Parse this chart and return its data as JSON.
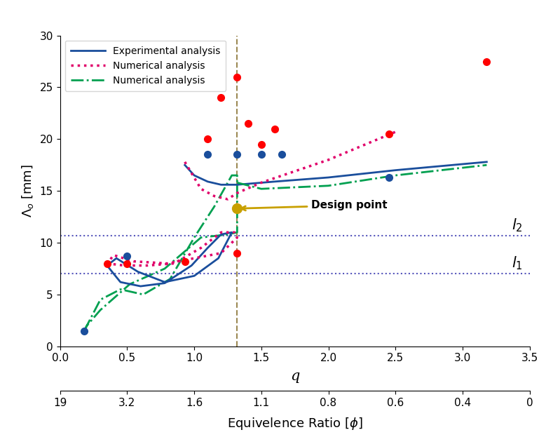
{
  "xlim": [
    0.0,
    3.5
  ],
  "ylim": [
    0.0,
    30.0
  ],
  "xticks": [
    0.0,
    0.5,
    1.0,
    1.5,
    2.0,
    2.5,
    3.0,
    3.5
  ],
  "yticks": [
    0,
    5,
    10,
    15,
    20,
    25,
    30
  ],
  "phi_labels": [
    "19",
    "3.2",
    "1.6",
    "1.1",
    "0.8",
    "0.6",
    "0.4",
    "0"
  ],
  "l1_y": 7.0,
  "l2_y": 10.7,
  "design_point_x": 1.32,
  "design_point_y": 13.3,
  "vline_x": 1.32,
  "blue_line_x": [
    0.93,
    1.0,
    1.1,
    1.2,
    1.32,
    1.6,
    2.0,
    2.5,
    3.18
  ],
  "blue_line_y": [
    17.5,
    16.5,
    15.9,
    15.6,
    15.6,
    15.9,
    16.3,
    17.0,
    17.8
  ],
  "blue_loop_x": [
    0.35,
    0.45,
    0.6,
    0.78,
    0.98,
    1.1,
    1.2,
    1.28,
    1.18,
    1.0,
    0.78,
    0.58,
    0.42,
    0.35
  ],
  "blue_loop_y": [
    7.8,
    6.2,
    5.8,
    6.1,
    7.8,
    9.5,
    10.8,
    11.0,
    8.5,
    6.8,
    6.2,
    7.2,
    8.5,
    7.8
  ],
  "pink_line_x": [
    0.93,
    1.05,
    1.15,
    1.25,
    1.32,
    1.5,
    2.0,
    2.5
  ],
  "pink_line_y": [
    17.8,
    15.2,
    14.5,
    14.2,
    14.8,
    15.8,
    18.0,
    20.7
  ],
  "pink_loop_x": [
    0.35,
    0.48,
    0.65,
    0.85,
    1.05,
    1.2,
    1.3,
    1.32,
    1.2,
    1.0,
    0.8,
    0.55,
    0.4,
    0.35
  ],
  "pink_loop_y": [
    8.0,
    7.8,
    7.8,
    8.0,
    9.5,
    11.0,
    11.0,
    10.5,
    9.0,
    8.5,
    8.0,
    8.2,
    8.8,
    8.0
  ],
  "green_outer_x": [
    0.18,
    0.22,
    0.3,
    0.45,
    0.62,
    0.82,
    1.0,
    1.15,
    1.28,
    1.32,
    1.32,
    1.25,
    1.05,
    0.78,
    0.52,
    0.3,
    0.2,
    0.18
  ],
  "green_outer_y": [
    1.5,
    2.5,
    4.5,
    5.5,
    5.0,
    6.5,
    10.5,
    13.5,
    16.5,
    16.5,
    11.0,
    10.8,
    10.5,
    7.5,
    6.0,
    3.5,
    2.0,
    1.5
  ],
  "green_line_x": [
    1.32,
    1.5,
    2.0,
    2.5,
    3.18
  ],
  "green_line_y": [
    15.8,
    15.2,
    15.5,
    16.5,
    17.5
  ],
  "red_dots": [
    [
      1.1,
      20.0
    ],
    [
      1.2,
      24.0
    ],
    [
      1.32,
      26.0
    ],
    [
      1.4,
      21.5
    ],
    [
      1.5,
      19.5
    ],
    [
      1.6,
      21.0
    ],
    [
      2.45,
      20.5
    ],
    [
      3.18,
      27.5
    ],
    [
      0.35,
      8.0
    ],
    [
      0.5,
      8.0
    ],
    [
      0.93,
      8.2
    ],
    [
      1.32,
      9.0
    ]
  ],
  "blue_dots": [
    [
      1.1,
      18.5
    ],
    [
      1.32,
      18.5
    ],
    [
      1.5,
      18.5
    ],
    [
      1.65,
      18.5
    ],
    [
      2.45,
      16.3
    ],
    [
      0.18,
      1.5
    ],
    [
      0.5,
      8.7
    ]
  ],
  "blue_color": "#1a4e9c",
  "pink_color": "#e0006a",
  "green_color": "#00a050",
  "gold_color": "#c8a000",
  "hline_color": "#5555bb",
  "vline_color": "#8B7536",
  "legend_labels": [
    "Experimental analysis",
    "Numerical analysis",
    "Numerical analysis"
  ],
  "annotation_text": "Design point",
  "l1_label": "$l_1$",
  "l2_label": "$l_2$"
}
